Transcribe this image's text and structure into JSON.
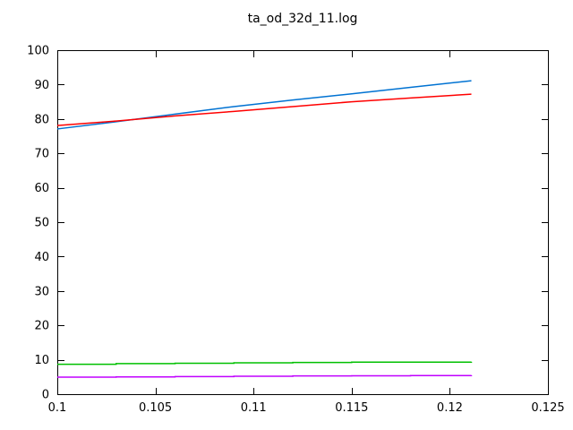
{
  "window": {
    "background": "#ffffff",
    "foreground": "#000000"
  },
  "chart_data": {
    "type": "line",
    "title": "ta_od_32d_11.log",
    "xlabel": "",
    "ylabel": "",
    "xlim": [
      0.1,
      0.125
    ],
    "ylim": [
      0,
      100
    ],
    "grid": false,
    "legend": "none",
    "border": "box-with-mirrored-inward-ticks",
    "axis_color": "#000000",
    "x_tick_values": [
      0.1,
      0.105,
      0.11,
      0.115,
      0.12,
      0.125
    ],
    "x_tick_labels": [
      "0.1",
      "0.105",
      "0.11",
      "0.115",
      "0.12",
      "0.125"
    ],
    "y_tick_values": [
      0,
      10,
      20,
      30,
      40,
      50,
      60,
      70,
      80,
      90,
      100
    ],
    "y_tick_labels": [
      "0",
      "10",
      "20",
      "30",
      "40",
      "50",
      "60",
      "70",
      "80",
      "90",
      "100"
    ],
    "x": [
      0.1,
      0.103,
      0.106,
      0.109,
      0.112,
      0.115,
      0.118,
      0.1211
    ],
    "series": [
      {
        "name": "blue-line",
        "color": "#0072d2",
        "style": "linear",
        "values": [
          77.1,
          79.2,
          81.4,
          83.6,
          85.5,
          87.3,
          89.2,
          91.1
        ]
      },
      {
        "name": "red-line",
        "color": "#ff0000",
        "style": "linear",
        "values": [
          78.1,
          79.4,
          80.9,
          82.2,
          83.6,
          85.0,
          86.1,
          87.2
        ]
      },
      {
        "name": "green-line",
        "color": "#00c000",
        "style": "steps",
        "values": [
          8.7,
          8.9,
          9.0,
          9.1,
          9.2,
          9.3,
          9.3,
          9.4
        ]
      },
      {
        "name": "magenta-line",
        "color": "#c000ff",
        "style": "steps",
        "values": [
          4.95,
          5.0,
          5.1,
          5.2,
          5.3,
          5.35,
          5.4,
          5.5
        ]
      }
    ]
  }
}
